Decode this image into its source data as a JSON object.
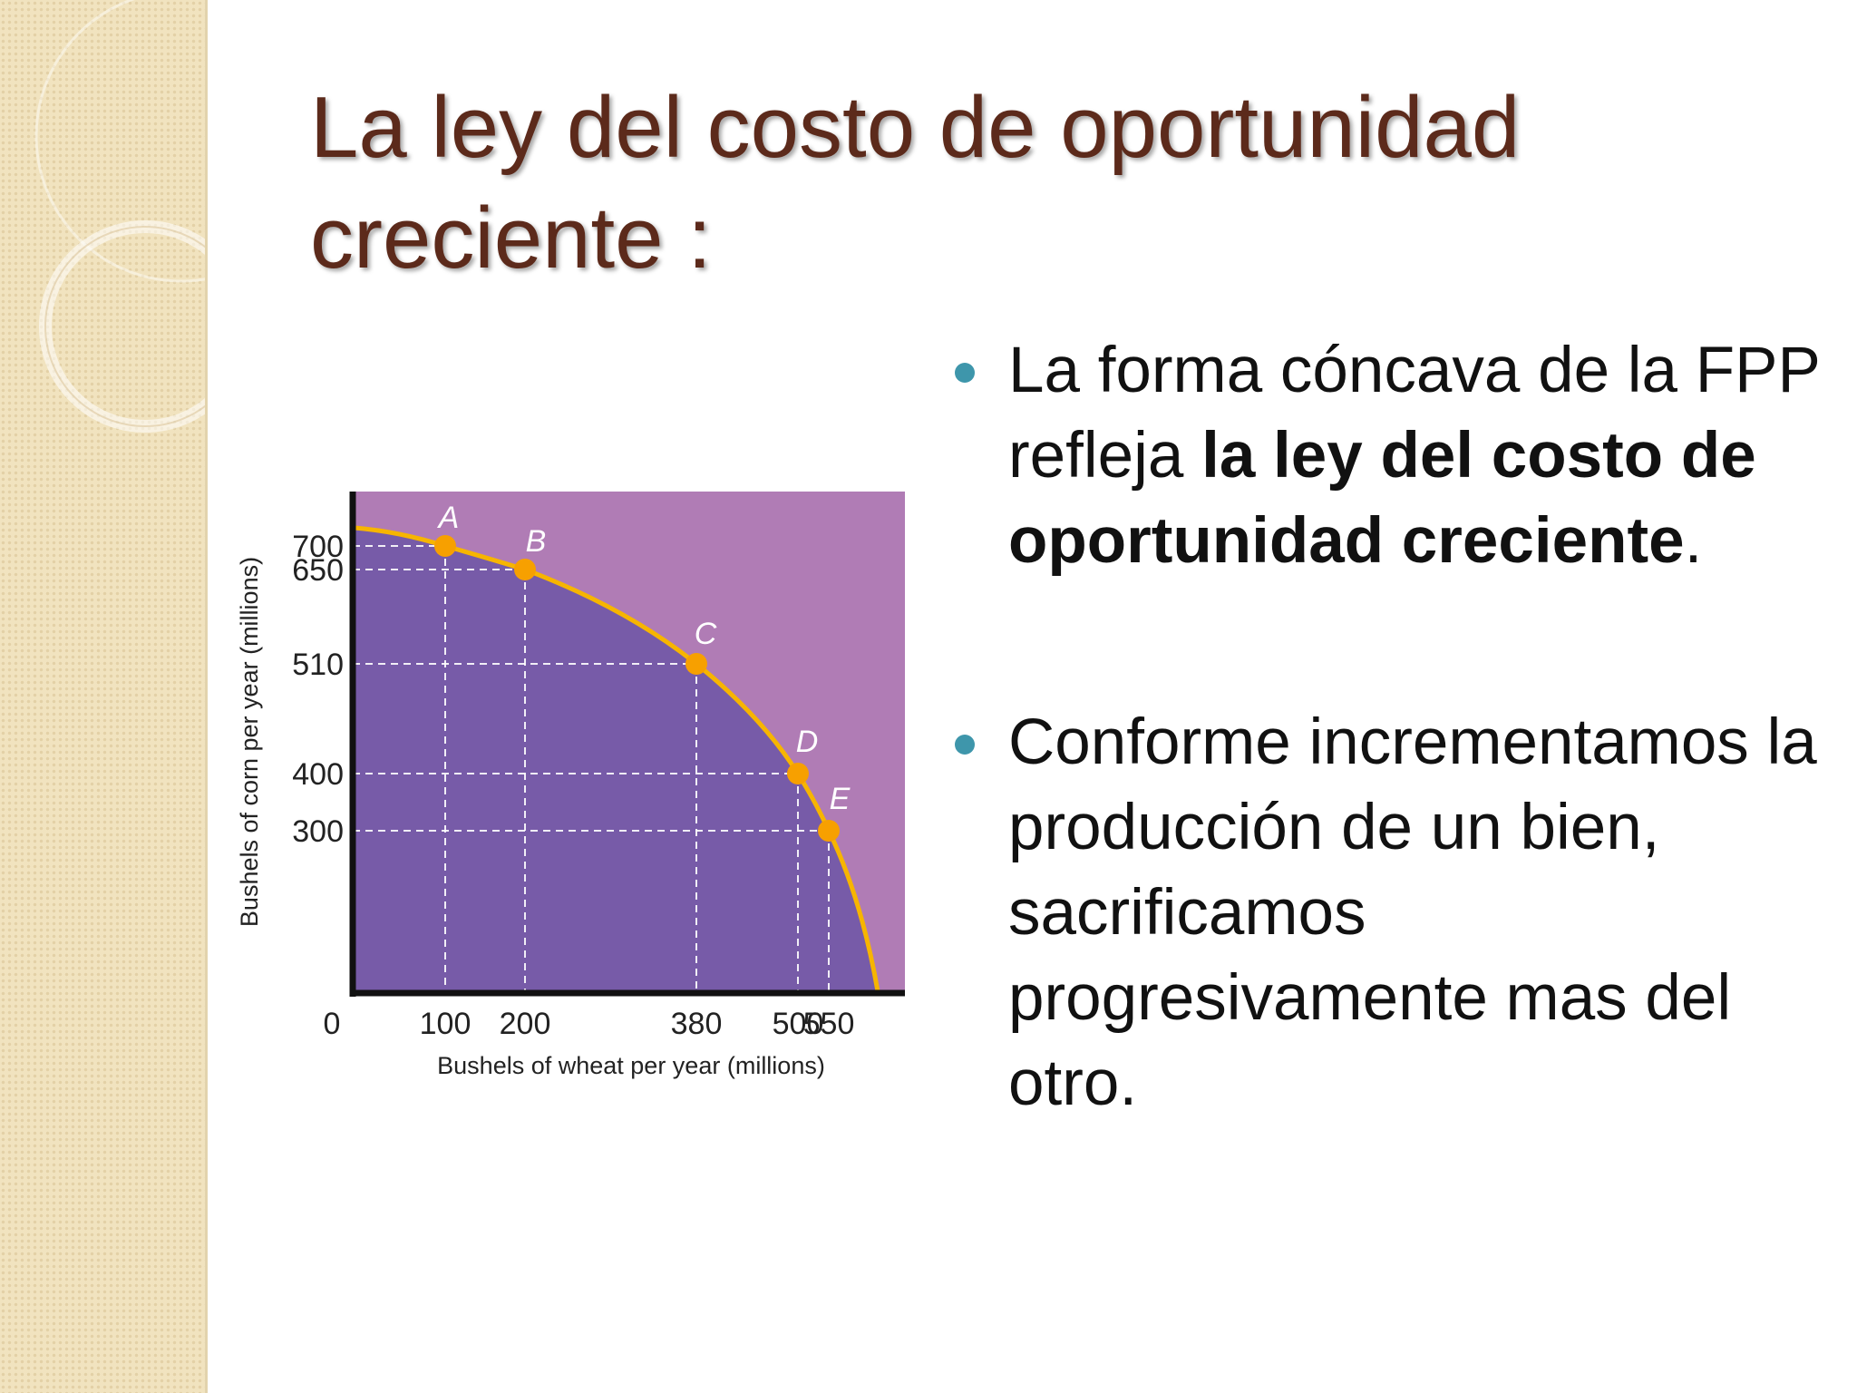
{
  "slide": {
    "title_lines": [
      "La ley del costo de oportunidad",
      "creciente :"
    ],
    "bullets": [
      {
        "pre": "La forma cóncava de la FPP refleja ",
        "bold": "la ley del costo de oportunidad creciente",
        "post": "."
      },
      {
        "text": "Conforme incrementamos la producción de un bien, sacrificamos progresivamente mas del otro."
      }
    ]
  },
  "theme": {
    "title_color": "#5c2a1b",
    "bullet_color": "#3e96ab",
    "side_band_color": "#f1e3bf"
  },
  "chart_data": {
    "type": "line",
    "title": "",
    "xlabel": "Bushels of wheat per year (millions)",
    "ylabel": "Bushels of corn per year (millions)",
    "origin_label": "0",
    "xlim": [
      0,
      550
    ],
    "ylim": [
      0,
      700
    ],
    "x_ticks": [
      "100",
      "200",
      "380",
      "500",
      "550"
    ],
    "y_ticks": [
      "700",
      "650",
      "510",
      "400",
      "300"
    ],
    "points": [
      {
        "label": "A",
        "x": 100,
        "y": 700
      },
      {
        "label": "B",
        "x": 200,
        "y": 650
      },
      {
        "label": "C",
        "x": 380,
        "y": 510
      },
      {
        "label": "D",
        "x": 500,
        "y": 400
      },
      {
        "label": "E",
        "x": 550,
        "y": 300
      }
    ],
    "colors": {
      "region_inside": "#775ba8",
      "region_outside": "#b07cb5",
      "curve": "#f7b500",
      "point": "#f7a000",
      "guide": "#ffffff"
    }
  }
}
